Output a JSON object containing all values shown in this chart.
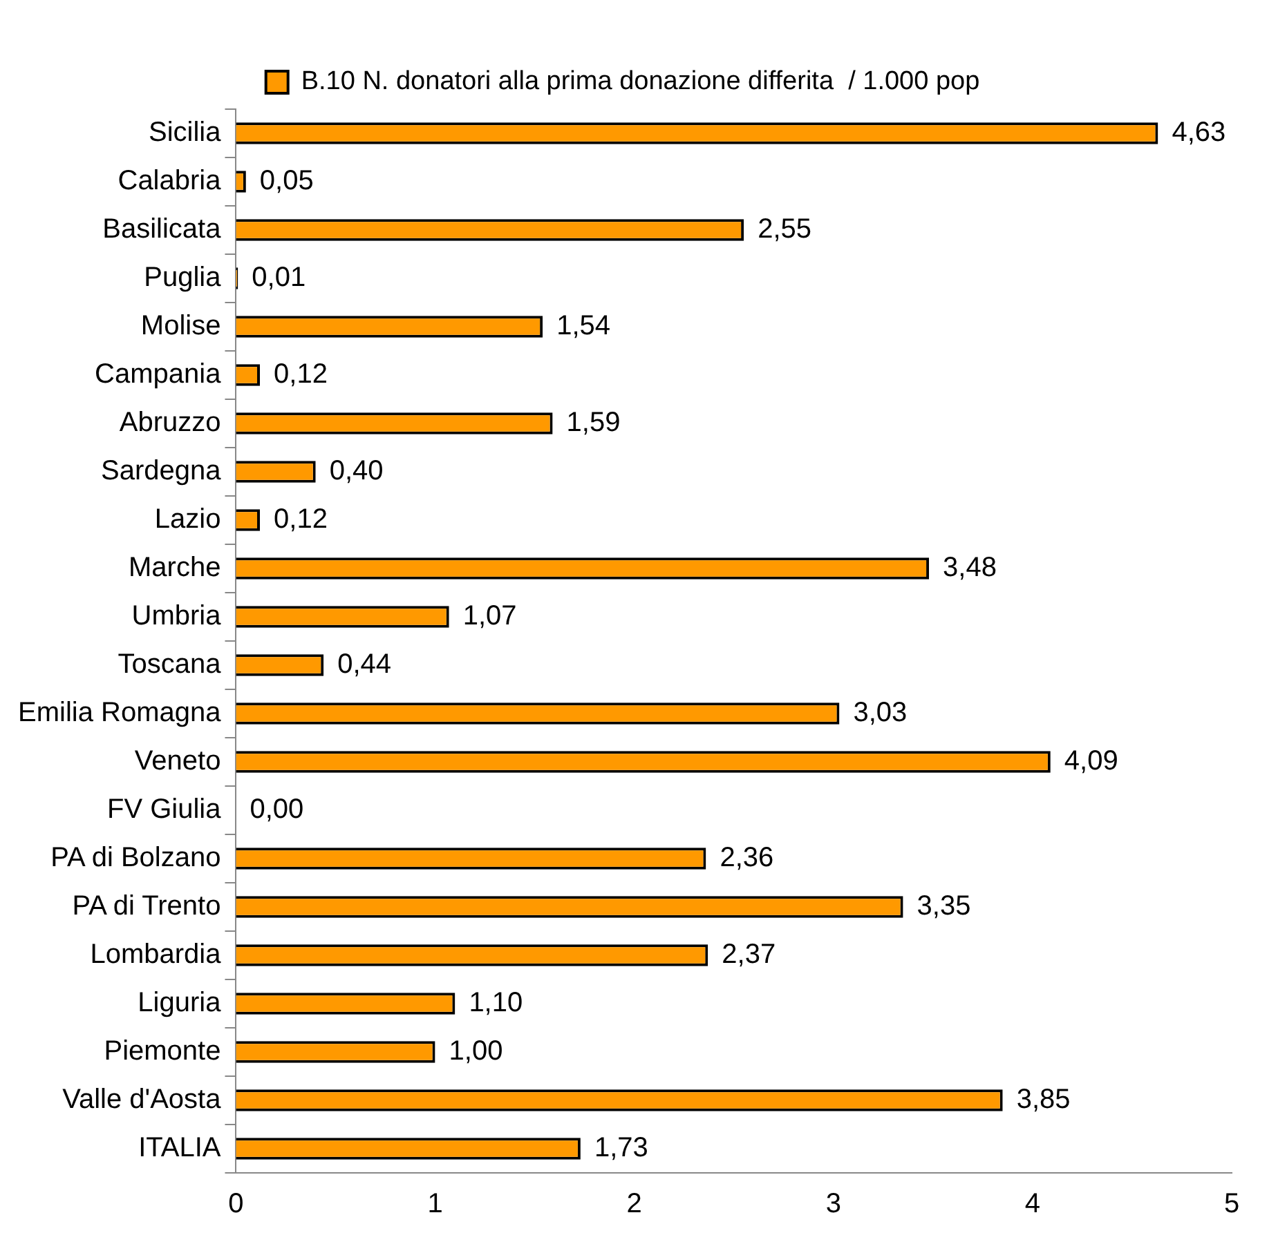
{
  "chart_data": {
    "type": "bar",
    "orientation": "horizontal",
    "categories": [
      "Sicilia",
      "Calabria",
      "Basilicata",
      "Puglia",
      "Molise",
      "Campania",
      "Abruzzo",
      "Sardegna",
      "Lazio",
      "Marche",
      "Umbria",
      "Toscana",
      "Emilia Romagna",
      "Veneto",
      "FV Giulia",
      "PA di Bolzano",
      "PA di Trento",
      "Lombardia",
      "Liguria",
      "Piemonte",
      "Valle d'Aosta",
      "ITALIA"
    ],
    "series": [
      {
        "name": "B.10 N. donatori alla prima donazione differita  / 1.000 pop",
        "color": "#ff9900",
        "values": [
          4.63,
          0.05,
          2.55,
          0.01,
          1.54,
          0.12,
          1.59,
          0.4,
          0.12,
          3.48,
          1.07,
          0.44,
          3.03,
          4.09,
          0.0,
          2.36,
          3.35,
          2.37,
          1.1,
          1.0,
          3.85,
          1.73
        ],
        "value_labels": [
          "4,63",
          "0,05",
          "2,55",
          "0,01",
          "1,54",
          "0,12",
          "1,59",
          "0,40",
          "0,12",
          "3,48",
          "1,07",
          "0,44",
          "3,03",
          "4,09",
          "0,00",
          "2,36",
          "3,35",
          "2,37",
          "1,10",
          "1,00",
          "3,85",
          "1,73"
        ]
      }
    ],
    "xlim": [
      0,
      5
    ],
    "xticks": [
      0,
      1,
      2,
      3,
      4,
      5
    ],
    "grid": false,
    "legend": "top"
  }
}
